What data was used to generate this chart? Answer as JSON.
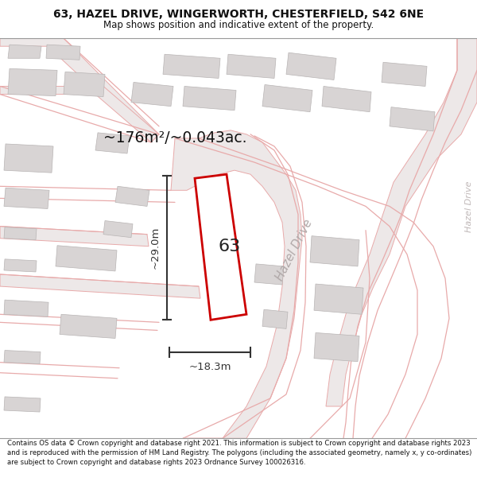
{
  "title_line1": "63, HAZEL DRIVE, WINGERWORTH, CHESTERFIELD, S42 6NE",
  "title_line2": "Map shows position and indicative extent of the property.",
  "footer_text": "Contains OS data © Crown copyright and database right 2021. This information is subject to Crown copyright and database rights 2023 and is reproduced with the permission of HM Land Registry. The polygons (including the associated geometry, namely x, y co-ordinates) are subject to Crown copyright and database rights 2023 Ordnance Survey 100026316.",
  "area_label": "~176m²/~0.043ac.",
  "plot_number": "63",
  "dim_height": "~29.0m",
  "dim_width": "~18.3m",
  "road_label_diag": "Hazel Drive",
  "road_label_vert": "Hazel Drive",
  "map_bg": "#f7f4f4",
  "plot_fill": "#ffffff",
  "plot_edge": "#cc0000",
  "building_fill": "#d8d4d4",
  "building_edge": "#b8b4b4",
  "road_fill": "#ede8e8",
  "road_edge": "#e8aaaa",
  "dim_color": "#333333",
  "label_color": "#c8b8b8"
}
